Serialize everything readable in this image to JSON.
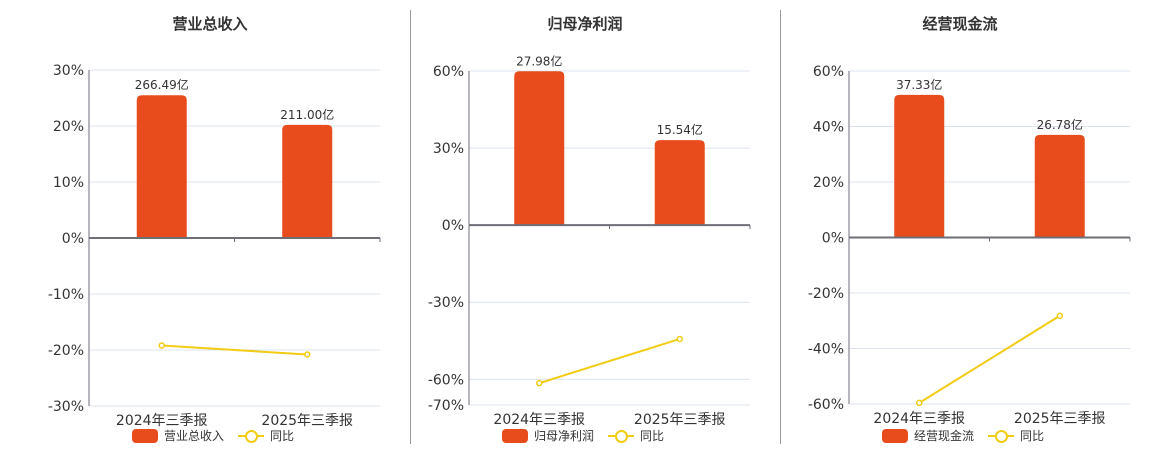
{
  "colors": {
    "bar": "#E84C1C",
    "line": "#F2CC14",
    "grid": "#DCE3EE",
    "axis": "#6E6E78",
    "text": "#333333"
  },
  "panels": [
    {
      "title": "营业总收入",
      "legend_bar": "营业总收入",
      "legend_line": "同比"
    },
    {
      "title": "归母净利润",
      "legend_bar": "归母净利润",
      "legend_line": "同比"
    },
    {
      "title": "经营现金流",
      "legend_bar": "经营现金流",
      "legend_line": "同比"
    }
  ],
  "chart_data": [
    {
      "type": "bar+line",
      "title": "营业总收入",
      "categories": [
        "2024年三季报",
        "2025年三季报"
      ],
      "series": [
        {
          "name": "营业总收入",
          "type": "bar",
          "values": [
            25.5,
            20.2
          ],
          "labels": [
            "266.49亿",
            "211.00亿"
          ]
        },
        {
          "name": "同比",
          "type": "line",
          "values": [
            -19.2,
            -20.8
          ]
        }
      ],
      "yticks": [
        "30%",
        "20%",
        "10%",
        "0%",
        "-10%",
        "-20%",
        "-30%"
      ],
      "ylim": [
        -30,
        30
      ],
      "legend_position": "bottom",
      "grid": true
    },
    {
      "type": "bar+line",
      "title": "归母净利润",
      "categories": [
        "2024年三季报",
        "2025年三季报"
      ],
      "series": [
        {
          "name": "归母净利润",
          "type": "bar",
          "values": [
            59.9,
            33.1
          ],
          "labels": [
            "27.98亿",
            "15.54亿"
          ]
        },
        {
          "name": "同比",
          "type": "line",
          "values": [
            -61.5,
            -44.3
          ]
        }
      ],
      "yticks": [
        "60%",
        "30%",
        "0%",
        "-30%",
        "-60%",
        "-70%"
      ],
      "ylim": [
        -70,
        60
      ],
      "legend_position": "bottom",
      "grid": true
    },
    {
      "type": "bar+line",
      "title": "经营现金流",
      "categories": [
        "2024年三季报",
        "2025年三季报"
      ],
      "series": [
        {
          "name": "经营现金流",
          "type": "bar",
          "values": [
            51.4,
            37.0
          ],
          "labels": [
            "37.33亿",
            "26.78亿"
          ]
        },
        {
          "name": "同比",
          "type": "line",
          "values": [
            -59.6,
            -28.2
          ]
        }
      ],
      "yticks": [
        "60%",
        "40%",
        "20%",
        "0%",
        "-20%",
        "-40%",
        "-60%"
      ],
      "ylim": [
        -60,
        60
      ],
      "legend_position": "bottom",
      "grid": true
    }
  ]
}
